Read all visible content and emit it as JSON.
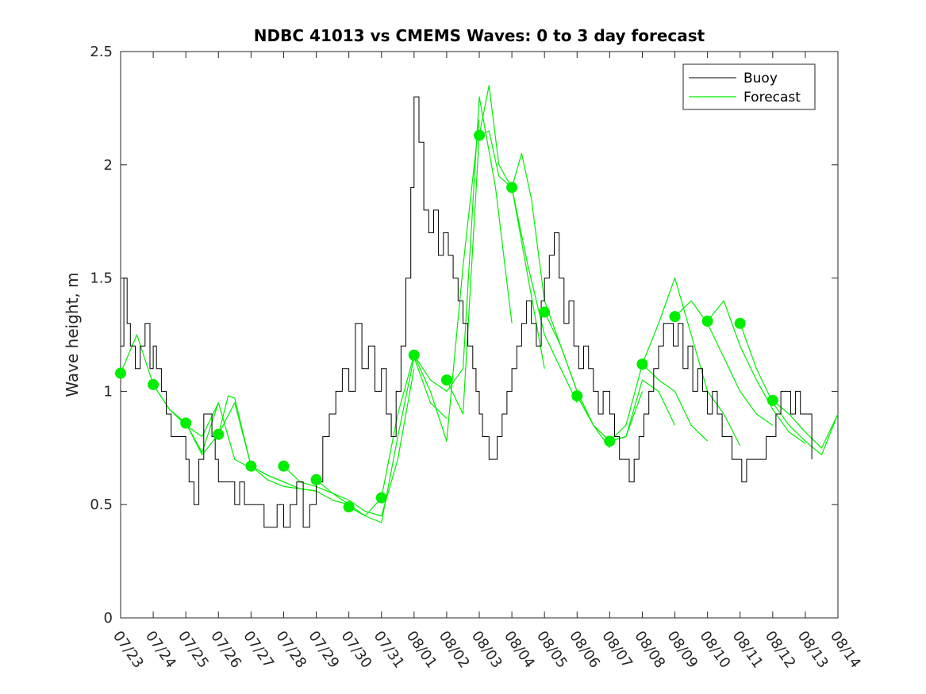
{
  "chart_data": {
    "type": "line",
    "title": "NDBC 41013 vs CMEMS Waves: 0 to 3 day forecast",
    "xlabel": "",
    "ylabel": "Wave height, m",
    "xlim": [
      "07/23",
      "08/14"
    ],
    "ylim": [
      0,
      2.5
    ],
    "yticks": [
      0,
      0.5,
      1,
      1.5,
      2,
      2.5
    ],
    "xticks": [
      "07/23",
      "07/24",
      "07/25",
      "07/26",
      "07/27",
      "07/28",
      "07/29",
      "07/30",
      "07/31",
      "08/01",
      "08/02",
      "08/03",
      "08/04",
      "08/05",
      "08/06",
      "08/07",
      "08/08",
      "08/09",
      "08/10",
      "08/11",
      "08/12",
      "08/13",
      "08/14"
    ],
    "grid": false,
    "legend": {
      "placement": "top-right",
      "entries": [
        "Buoy",
        "Forecast"
      ]
    },
    "colors": {
      "buoy": "#000000",
      "forecast": "#00ee00"
    },
    "buoy": {
      "name": "Buoy",
      "day": [
        0,
        0.1,
        0.2,
        0.3,
        0.45,
        0.6,
        0.75,
        0.9,
        1.0,
        1.1,
        1.25,
        1.4,
        1.55,
        1.7,
        1.85,
        2.0,
        2.1,
        2.25,
        2.4,
        2.55,
        2.7,
        2.8,
        2.9,
        3.0,
        3.1,
        3.2,
        3.35,
        3.5,
        3.65,
        3.8,
        4.0,
        4.2,
        4.4,
        4.6,
        4.8,
        5.0,
        5.2,
        5.4,
        5.6,
        5.8,
        6.0,
        6.2,
        6.4,
        6.6,
        6.8,
        7.0,
        7.2,
        7.4,
        7.6,
        7.8,
        8.0,
        8.15,
        8.3,
        8.45,
        8.6,
        8.75,
        8.9,
        9.0,
        9.15,
        9.3,
        9.45,
        9.6,
        9.75,
        9.9,
        10.05,
        10.2,
        10.35,
        10.5,
        10.65,
        10.8,
        10.9,
        11.0,
        11.1,
        11.2,
        11.3,
        11.4,
        11.55,
        11.7,
        11.85,
        12.0,
        12.15,
        12.3,
        12.45,
        12.6,
        12.75,
        12.9,
        13.0,
        13.15,
        13.3,
        13.45,
        13.6,
        13.75,
        13.9,
        14.05,
        14.2,
        14.35,
        14.5,
        14.65,
        14.8,
        15.0,
        15.15,
        15.3,
        15.45,
        15.6,
        15.75,
        15.9,
        16.05,
        16.2,
        16.35,
        16.5,
        16.65,
        16.8,
        16.95,
        17.1,
        17.25,
        17.4,
        17.55,
        17.7,
        17.85,
        18.0,
        18.15,
        18.3,
        18.45,
        18.6,
        18.75,
        18.9,
        19.05,
        19.2,
        19.35,
        19.5,
        19.65,
        19.8,
        19.95,
        20.1,
        20.25,
        20.4,
        20.55,
        20.7,
        20.85,
        21.0,
        21.2
      ],
      "height": [
        1.2,
        1.5,
        1.3,
        1.2,
        1.1,
        1.2,
        1.3,
        1.1,
        1.2,
        1.1,
        1.0,
        0.9,
        0.8,
        0.8,
        0.8,
        0.7,
        0.6,
        0.5,
        0.7,
        0.9,
        0.9,
        0.8,
        0.7,
        0.6,
        0.6,
        0.6,
        0.6,
        0.5,
        0.6,
        0.5,
        0.5,
        0.5,
        0.4,
        0.4,
        0.5,
        0.4,
        0.5,
        0.6,
        0.4,
        0.5,
        0.6,
        0.8,
        0.9,
        1.0,
        1.1,
        1.0,
        1.3,
        1.1,
        1.2,
        1.0,
        1.1,
        0.9,
        0.8,
        1.0,
        1.2,
        1.5,
        1.9,
        2.3,
        2.1,
        1.8,
        1.7,
        1.8,
        1.6,
        1.7,
        1.6,
        1.5,
        1.4,
        1.3,
        1.2,
        1.1,
        1.0,
        0.9,
        0.8,
        0.8,
        0.7,
        0.7,
        0.8,
        0.9,
        1.0,
        1.1,
        1.2,
        1.3,
        1.4,
        1.3,
        1.2,
        1.4,
        1.5,
        1.6,
        1.7,
        1.5,
        1.3,
        1.4,
        1.2,
        1.1,
        1.2,
        1.1,
        1.0,
        0.9,
        1.0,
        0.9,
        0.8,
        0.7,
        0.7,
        0.6,
        0.7,
        0.8,
        0.9,
        1.0,
        1.1,
        1.2,
        1.3,
        1.3,
        1.2,
        1.3,
        1.1,
        1.2,
        1.0,
        1.1,
        1.0,
        0.9,
        1.0,
        0.9,
        0.8,
        0.8,
        0.7,
        0.7,
        0.6,
        0.7,
        0.7,
        0.7,
        0.7,
        0.8,
        0.8,
        0.9,
        1.0,
        1.0,
        0.9,
        1.0,
        0.9,
        0.9,
        0.7
      ],
      "x_unit": "days after 07/23"
    },
    "forecast": {
      "name": "Forecast",
      "runs": [
        {
          "day": [
            0,
            0.5,
            1,
            1.5,
            2,
            2.5,
            3
          ],
          "height": [
            1.08,
            1.25,
            1.03,
            0.92,
            0.85,
            0.8,
            0.95
          ]
        },
        {
          "day": [
            1,
            1.5,
            2,
            2.5,
            3,
            3.5,
            4
          ],
          "height": [
            1.03,
            0.92,
            0.86,
            0.73,
            0.95,
            0.7,
            0.66
          ]
        },
        {
          "day": [
            2,
            2.5,
            3,
            3.5,
            4,
            4.5,
            5
          ],
          "height": [
            0.86,
            0.72,
            0.81,
            0.95,
            0.67,
            0.63,
            0.6
          ]
        },
        {
          "day": [
            3,
            3.3,
            3.5,
            4,
            4.5,
            5,
            5.5,
            6
          ],
          "height": [
            0.81,
            0.98,
            0.97,
            0.67,
            0.61,
            0.58,
            0.57,
            0.56
          ]
        },
        {
          "day": [
            4,
            4.5,
            5,
            5.5,
            6,
            6.5,
            7
          ],
          "height": [
            0.67,
            0.63,
            0.6,
            0.57,
            0.56,
            0.52,
            0.5
          ]
        },
        {
          "day": [
            5,
            5.5,
            6,
            6.5,
            7,
            7.5,
            8
          ],
          "height": [
            0.67,
            0.6,
            0.58,
            0.55,
            0.5,
            0.45,
            0.53
          ]
        },
        {
          "day": [
            6,
            6.5,
            7,
            7.5,
            8,
            8.5,
            9
          ],
          "height": [
            0.61,
            0.55,
            0.52,
            0.47,
            0.45,
            0.7,
            1.1
          ]
        },
        {
          "day": [
            7,
            7.5,
            8,
            8.5,
            9,
            9.5,
            10
          ],
          "height": [
            0.49,
            0.45,
            0.42,
            0.8,
            1.15,
            0.95,
            0.88
          ]
        },
        {
          "day": [
            8,
            8.5,
            9,
            9.5,
            10,
            10.5,
            11
          ],
          "height": [
            0.53,
            0.9,
            1.16,
            1.0,
            0.78,
            1.55,
            2.2
          ]
        },
        {
          "day": [
            9,
            9.5,
            10,
            10.5,
            11,
            11.5,
            12
          ],
          "height": [
            1.16,
            1.05,
            1.0,
            1.1,
            2.3,
            1.9,
            1.3
          ]
        },
        {
          "day": [
            10,
            10.5,
            11,
            11.3,
            11.6,
            12,
            12.5,
            13
          ],
          "height": [
            1.05,
            0.9,
            2.13,
            2.35,
            2.0,
            1.9,
            1.5,
            1.1
          ]
        },
        {
          "day": [
            11,
            11.3,
            11.6,
            12,
            12.5,
            13,
            13.5,
            14
          ],
          "height": [
            2.13,
            2.15,
            1.95,
            1.9,
            1.55,
            1.25,
            1.1,
            0.95
          ]
        },
        {
          "day": [
            12,
            12.3,
            12.6,
            13,
            13.5,
            14,
            14.5,
            15
          ],
          "height": [
            1.9,
            2.05,
            1.85,
            1.4,
            1.2,
            1.0,
            0.85,
            0.75
          ]
        },
        {
          "day": [
            13,
            13.5,
            14,
            14.5,
            15,
            15.5,
            16
          ],
          "height": [
            1.35,
            1.2,
            1.0,
            0.85,
            0.78,
            0.8,
            1.0
          ]
        },
        {
          "day": [
            14,
            14.5,
            15,
            15.5,
            16,
            16.5,
            17
          ],
          "height": [
            0.98,
            0.85,
            0.78,
            0.8,
            1.05,
            1.0,
            0.85
          ]
        },
        {
          "day": [
            15,
            15.5,
            16,
            16.5,
            17,
            17.5,
            18
          ],
          "height": [
            0.78,
            0.85,
            1.12,
            1.05,
            1.0,
            0.85,
            0.78
          ]
        },
        {
          "day": [
            16,
            16.5,
            17,
            17.5,
            18,
            18.5,
            19
          ],
          "height": [
            1.12,
            1.3,
            1.5,
            1.25,
            1.0,
            0.9,
            0.76
          ]
        },
        {
          "day": [
            17,
            17.5,
            18,
            18.5,
            19,
            19.5,
            20
          ],
          "height": [
            1.33,
            1.4,
            1.3,
            1.15,
            1.0,
            0.9,
            0.85
          ]
        },
        {
          "day": [
            18,
            18.5,
            19,
            19.5,
            20,
            20.5,
            21
          ],
          "height": [
            1.31,
            1.4,
            1.2,
            1.05,
            0.92,
            0.82,
            0.77
          ]
        },
        {
          "day": [
            19,
            19.5,
            20,
            20.5,
            21,
            21.5,
            22
          ],
          "height": [
            1.3,
            1.1,
            0.95,
            0.85,
            0.78,
            0.72,
            0.9
          ]
        },
        {
          "day": [
            20,
            20.5,
            21,
            21.5,
            22
          ],
          "height": [
            0.96,
            0.9,
            0.82,
            0.75,
            0.9
          ]
        }
      ],
      "analysis_points": {
        "day": [
          0,
          1,
          2,
          3,
          4,
          5,
          6,
          7,
          8,
          9,
          10,
          11,
          12,
          13,
          14,
          15,
          16,
          17,
          18,
          19,
          20
        ],
        "height": [
          1.08,
          1.03,
          0.86,
          0.81,
          0.67,
          0.67,
          0.61,
          0.49,
          0.53,
          1.16,
          1.05,
          2.13,
          1.9,
          1.35,
          0.98,
          0.78,
          1.12,
          1.33,
          1.31,
          1.3,
          0.96
        ]
      }
    }
  }
}
